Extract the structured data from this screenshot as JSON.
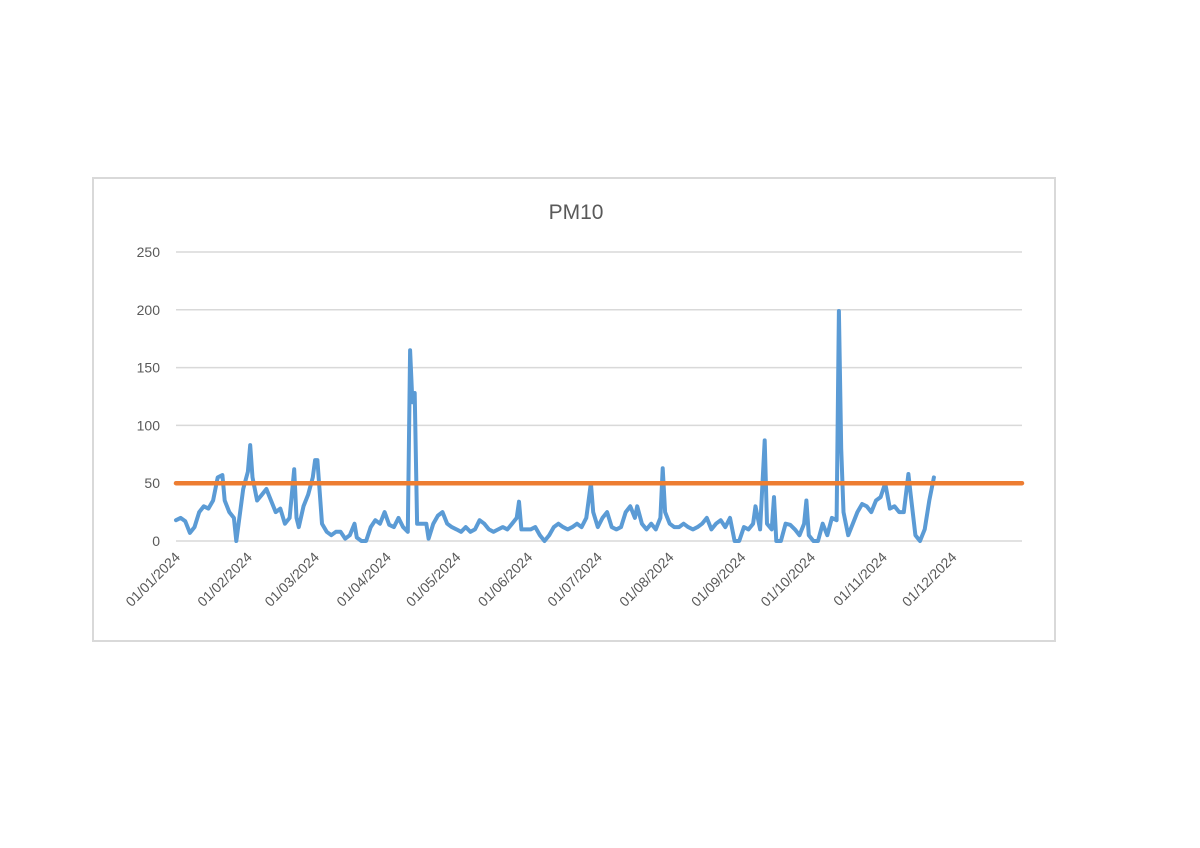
{
  "chart_data": {
    "type": "line",
    "title": "PM10",
    "xlabel": "",
    "ylabel": "",
    "ylim": [
      0,
      250
    ],
    "yticks": [
      0,
      50,
      100,
      150,
      200,
      250
    ],
    "xlim": [
      "2024-01-01",
      "2024-12-31"
    ],
    "x_tick_labels": [
      "01/01/2024",
      "01/02/2024",
      "01/03/2024",
      "01/04/2024",
      "01/05/2024",
      "01/06/2024",
      "01/07/2024",
      "01/08/2024",
      "01/09/2024",
      "01/10/2024",
      "01/11/2024",
      "01/12/2024"
    ],
    "x_tick_dates": [
      "2024-01-01",
      "2024-02-01",
      "2024-03-01",
      "2024-04-01",
      "2024-05-01",
      "2024-06-01",
      "2024-07-01",
      "2024-08-01",
      "2024-09-01",
      "2024-10-01",
      "2024-11-01",
      "2024-12-01"
    ],
    "grid": true,
    "legend": "none",
    "series": [
      {
        "color": "#5b9bd5",
        "points": [
          [
            "2024-01-01",
            18
          ],
          [
            "2024-01-03",
            20
          ],
          [
            "2024-01-05",
            17
          ],
          [
            "2024-01-07",
            7
          ],
          [
            "2024-01-09",
            12
          ],
          [
            "2024-01-11",
            25
          ],
          [
            "2024-01-13",
            30
          ],
          [
            "2024-01-15",
            28
          ],
          [
            "2024-01-17",
            35
          ],
          [
            "2024-01-19",
            55
          ],
          [
            "2024-01-21",
            57
          ],
          [
            "2024-01-22",
            35
          ],
          [
            "2024-01-24",
            25
          ],
          [
            "2024-01-26",
            20
          ],
          [
            "2024-01-27",
            0
          ],
          [
            "2024-01-28",
            15
          ],
          [
            "2024-01-30",
            45
          ],
          [
            "2024-02-01",
            60
          ],
          [
            "2024-02-02",
            83
          ],
          [
            "2024-02-03",
            55
          ],
          [
            "2024-02-05",
            35
          ],
          [
            "2024-02-07",
            40
          ],
          [
            "2024-02-09",
            45
          ],
          [
            "2024-02-11",
            35
          ],
          [
            "2024-02-13",
            25
          ],
          [
            "2024-02-15",
            28
          ],
          [
            "2024-02-17",
            15
          ],
          [
            "2024-02-19",
            20
          ],
          [
            "2024-02-21",
            62
          ],
          [
            "2024-02-22",
            20
          ],
          [
            "2024-02-23",
            12
          ],
          [
            "2024-02-25",
            30
          ],
          [
            "2024-02-27",
            40
          ],
          [
            "2024-02-29",
            55
          ],
          [
            "2024-03-01",
            70
          ],
          [
            "2024-03-02",
            70
          ],
          [
            "2024-03-04",
            15
          ],
          [
            "2024-03-06",
            8
          ],
          [
            "2024-03-08",
            5
          ],
          [
            "2024-03-10",
            8
          ],
          [
            "2024-03-12",
            8
          ],
          [
            "2024-03-14",
            2
          ],
          [
            "2024-03-16",
            5
          ],
          [
            "2024-03-18",
            15
          ],
          [
            "2024-03-19",
            3
          ],
          [
            "2024-03-21",
            0
          ],
          [
            "2024-03-23",
            0
          ],
          [
            "2024-03-25",
            12
          ],
          [
            "2024-03-27",
            18
          ],
          [
            "2024-03-29",
            15
          ],
          [
            "2024-03-31",
            25
          ],
          [
            "2024-04-02",
            14
          ],
          [
            "2024-04-04",
            12
          ],
          [
            "2024-04-06",
            20
          ],
          [
            "2024-04-08",
            12
          ],
          [
            "2024-04-10",
            8
          ],
          [
            "2024-04-11",
            165
          ],
          [
            "2024-04-12",
            120
          ],
          [
            "2024-04-13",
            128
          ],
          [
            "2024-04-14",
            15
          ],
          [
            "2024-04-16",
            15
          ],
          [
            "2024-04-18",
            15
          ],
          [
            "2024-04-19",
            2
          ],
          [
            "2024-04-21",
            15
          ],
          [
            "2024-04-23",
            22
          ],
          [
            "2024-04-25",
            25
          ],
          [
            "2024-04-27",
            15
          ],
          [
            "2024-04-29",
            12
          ],
          [
            "2024-05-01",
            10
          ],
          [
            "2024-05-03",
            8
          ],
          [
            "2024-05-05",
            12
          ],
          [
            "2024-05-07",
            8
          ],
          [
            "2024-05-09",
            10
          ],
          [
            "2024-05-11",
            18
          ],
          [
            "2024-05-13",
            15
          ],
          [
            "2024-05-15",
            10
          ],
          [
            "2024-05-17",
            8
          ],
          [
            "2024-05-19",
            10
          ],
          [
            "2024-05-21",
            12
          ],
          [
            "2024-05-23",
            10
          ],
          [
            "2024-05-25",
            15
          ],
          [
            "2024-05-27",
            20
          ],
          [
            "2024-05-28",
            34
          ],
          [
            "2024-05-29",
            10
          ],
          [
            "2024-05-31",
            10
          ],
          [
            "2024-06-02",
            10
          ],
          [
            "2024-06-04",
            12
          ],
          [
            "2024-06-06",
            5
          ],
          [
            "2024-06-08",
            0
          ],
          [
            "2024-06-10",
            5
          ],
          [
            "2024-06-12",
            12
          ],
          [
            "2024-06-14",
            15
          ],
          [
            "2024-06-16",
            12
          ],
          [
            "2024-06-18",
            10
          ],
          [
            "2024-06-20",
            12
          ],
          [
            "2024-06-22",
            15
          ],
          [
            "2024-06-24",
            12
          ],
          [
            "2024-06-26",
            20
          ],
          [
            "2024-06-28",
            50
          ],
          [
            "2024-06-29",
            25
          ],
          [
            "2024-07-01",
            12
          ],
          [
            "2024-07-03",
            20
          ],
          [
            "2024-07-05",
            25
          ],
          [
            "2024-07-07",
            12
          ],
          [
            "2024-07-09",
            10
          ],
          [
            "2024-07-11",
            12
          ],
          [
            "2024-07-13",
            25
          ],
          [
            "2024-07-15",
            30
          ],
          [
            "2024-07-17",
            20
          ],
          [
            "2024-07-18",
            30
          ],
          [
            "2024-07-20",
            15
          ],
          [
            "2024-07-22",
            10
          ],
          [
            "2024-07-24",
            15
          ],
          [
            "2024-07-26",
            10
          ],
          [
            "2024-07-28",
            20
          ],
          [
            "2024-07-29",
            63
          ],
          [
            "2024-07-30",
            25
          ],
          [
            "2024-08-01",
            15
          ],
          [
            "2024-08-03",
            12
          ],
          [
            "2024-08-05",
            12
          ],
          [
            "2024-08-07",
            15
          ],
          [
            "2024-08-09",
            12
          ],
          [
            "2024-08-11",
            10
          ],
          [
            "2024-08-13",
            12
          ],
          [
            "2024-08-15",
            15
          ],
          [
            "2024-08-17",
            20
          ],
          [
            "2024-08-19",
            10
          ],
          [
            "2024-08-21",
            15
          ],
          [
            "2024-08-23",
            18
          ],
          [
            "2024-08-25",
            12
          ],
          [
            "2024-08-27",
            20
          ],
          [
            "2024-08-29",
            0
          ],
          [
            "2024-08-31",
            0
          ],
          [
            "2024-09-02",
            12
          ],
          [
            "2024-09-04",
            10
          ],
          [
            "2024-09-06",
            15
          ],
          [
            "2024-09-07",
            30
          ],
          [
            "2024-09-09",
            10
          ],
          [
            "2024-09-11",
            87
          ],
          [
            "2024-09-12",
            15
          ],
          [
            "2024-09-14",
            10
          ],
          [
            "2024-09-15",
            38
          ],
          [
            "2024-09-16",
            0
          ],
          [
            "2024-09-18",
            0
          ],
          [
            "2024-09-20",
            15
          ],
          [
            "2024-09-22",
            14
          ],
          [
            "2024-09-24",
            10
          ],
          [
            "2024-09-26",
            5
          ],
          [
            "2024-09-28",
            15
          ],
          [
            "2024-09-29",
            35
          ],
          [
            "2024-09-30",
            5
          ],
          [
            "2024-10-02",
            0
          ],
          [
            "2024-10-04",
            0
          ],
          [
            "2024-10-06",
            15
          ],
          [
            "2024-10-08",
            5
          ],
          [
            "2024-10-10",
            20
          ],
          [
            "2024-10-12",
            18
          ],
          [
            "2024-10-13",
            199
          ],
          [
            "2024-10-14",
            80
          ],
          [
            "2024-10-15",
            25
          ],
          [
            "2024-10-17",
            5
          ],
          [
            "2024-10-19",
            15
          ],
          [
            "2024-10-21",
            25
          ],
          [
            "2024-10-23",
            32
          ],
          [
            "2024-10-25",
            30
          ],
          [
            "2024-10-27",
            25
          ],
          [
            "2024-10-29",
            35
          ],
          [
            "2024-10-31",
            38
          ],
          [
            "2024-11-02",
            50
          ],
          [
            "2024-11-04",
            28
          ],
          [
            "2024-11-06",
            30
          ],
          [
            "2024-11-08",
            25
          ],
          [
            "2024-11-10",
            25
          ],
          [
            "2024-11-12",
            58
          ],
          [
            "2024-11-13",
            40
          ],
          [
            "2024-11-15",
            5
          ],
          [
            "2024-11-17",
            0
          ],
          [
            "2024-11-19",
            10
          ],
          [
            "2024-11-21",
            35
          ],
          [
            "2024-11-23",
            55
          ]
        ]
      },
      {
        "color": "#ed7d31",
        "points": [
          [
            "2024-01-01",
            50
          ],
          [
            "2024-12-31",
            50
          ]
        ]
      }
    ]
  }
}
